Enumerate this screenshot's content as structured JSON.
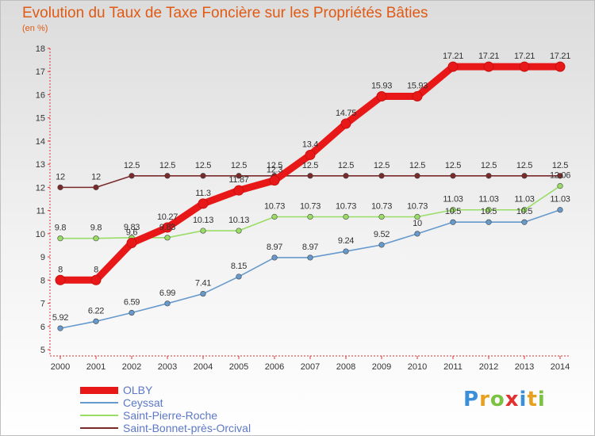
{
  "title": "Evolution du Taux de Taxe Foncière sur les Propriétés Bâties",
  "subtitle": "(en %)",
  "logo": {
    "text": "Proxiti",
    "letter_colors": [
      "#3a8fd8",
      "#e8a020",
      "#7cc242",
      "#e03030",
      "#3a8fd8",
      "#e8a020",
      "#7cc242"
    ]
  },
  "chart_data": {
    "type": "line",
    "categories": [
      "2000",
      "2001",
      "2002",
      "2003",
      "2004",
      "2005",
      "2006",
      "2007",
      "2008",
      "2009",
      "2010",
      "2011",
      "2012",
      "2013",
      "2014"
    ],
    "ylim": [
      5,
      18
    ],
    "yticks": [
      5,
      6,
      7,
      8,
      9,
      10,
      11,
      12,
      13,
      14,
      15,
      16,
      17,
      18
    ],
    "grid": false,
    "legend_position": "bottom-left",
    "series": [
      {
        "name": "OLBY",
        "color": "#e81818",
        "values": [
          8,
          8,
          9.6,
          10.27,
          11.3,
          11.87,
          12.3,
          13.4,
          14.75,
          15.93,
          15.93,
          17.21,
          17.21,
          17.21,
          17.21
        ],
        "labels": [
          "8",
          "8",
          "9.6",
          "10.27",
          "11.3",
          "11.87",
          "12.3",
          "13.4",
          "14.75",
          "15.93",
          "15.93",
          "17.21",
          "17.21",
          "17.21",
          "17.21"
        ]
      },
      {
        "name": "Ceyssat",
        "color": "#6699cc",
        "values": [
          5.92,
          6.22,
          6.59,
          6.99,
          7.41,
          8.15,
          8.97,
          8.97,
          9.24,
          9.52,
          10,
          10.5,
          10.5,
          10.5,
          11.03
        ],
        "labels": [
          "5.92",
          "6.22",
          "6.59",
          "6.99",
          "7.41",
          "8.15",
          "8.97",
          "8.97",
          "9.24",
          "9.52",
          "10",
          "10.5",
          "10.5",
          "10.5",
          "11.03"
        ]
      },
      {
        "name": "Saint-Pierre-Roche",
        "color": "#99dd66",
        "values": [
          9.8,
          9.8,
          9.83,
          9.83,
          10.13,
          10.13,
          10.73,
          10.73,
          10.73,
          10.73,
          10.73,
          11.03,
          11.03,
          11.03,
          12.06
        ],
        "labels": [
          "9.8",
          "9.8",
          "9.83",
          "9.83",
          "10.13",
          "10.13",
          "10.73",
          "10.73",
          "10.73",
          "10.73",
          "10.73",
          "11.03",
          "11.03",
          "11.03",
          "12.06"
        ]
      },
      {
        "name": "Saint-Bonnet-près-Orcival",
        "color": "#7a2a2a",
        "values": [
          12,
          12,
          12.5,
          12.5,
          12.5,
          12.5,
          12.5,
          12.5,
          12.5,
          12.5,
          12.5,
          12.5,
          12.5,
          12.5,
          12.5
        ],
        "labels": [
          "12",
          "12",
          "12.5",
          "12.5",
          "12.5",
          "12.5",
          "12.5",
          "12.5",
          "12.5",
          "12.5",
          "12.5",
          "12.5",
          "12.5",
          "12.5",
          "12.5"
        ]
      }
    ]
  }
}
